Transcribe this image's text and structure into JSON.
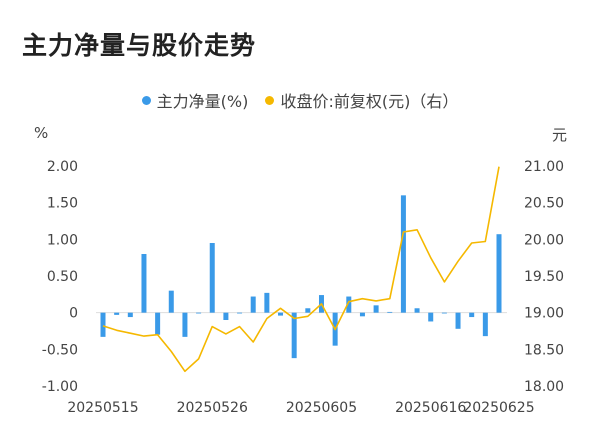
{
  "title": "主力净量与股价走势",
  "legend": {
    "bar": "主力净量(%)",
    "line": "收盘价:前复权(元)（右）"
  },
  "colors": {
    "bar": "#3a9ae8",
    "line": "#f5b800",
    "zero_line": "#dddddd",
    "text": "#444444"
  },
  "chart_data": {
    "type": "bar+line",
    "title": "主力净量与股价走势",
    "y_left": {
      "unit": "%",
      "ylim": [
        -1.0,
        2.0
      ],
      "ticks": [
        "2.00",
        "1.50",
        "1.00",
        "0.50",
        "0",
        "-0.50",
        "-1.00"
      ]
    },
    "y_right": {
      "unit": "元",
      "ylim": [
        18.0,
        21.0
      ],
      "ticks": [
        "21.00",
        "20.50",
        "20.00",
        "19.50",
        "19.00",
        "18.50",
        "18.00"
      ]
    },
    "x_tick_labels": [
      {
        "index": 0,
        "label": "20250515"
      },
      {
        "index": 8,
        "label": "20250526"
      },
      {
        "index": 16,
        "label": "20250605"
      },
      {
        "index": 24,
        "label": "20250616"
      },
      {
        "index": 32,
        "label": "20250625"
      }
    ],
    "series": [
      {
        "name": "主力净量(%)",
        "type": "bar",
        "axis": "left",
        "values": [
          -0.33,
          -0.03,
          -0.06,
          0.8,
          -0.3,
          0.3,
          -0.33,
          -0.01,
          0.95,
          -0.1,
          0.0,
          0.22,
          0.27,
          -0.04,
          -0.62,
          0.06,
          0.24,
          -0.45,
          0.22,
          -0.05,
          0.1,
          0.01,
          1.6,
          0.06,
          -0.12,
          -0.01,
          -0.22,
          -0.06,
          -0.32,
          1.07
        ]
      },
      {
        "name": "收盘价:前复权(元)（右）",
        "type": "line",
        "axis": "right",
        "values": [
          18.82,
          18.76,
          18.72,
          18.68,
          18.7,
          18.47,
          18.2,
          18.37,
          18.81,
          18.71,
          18.81,
          18.6,
          18.92,
          19.06,
          18.92,
          18.95,
          19.12,
          18.77,
          19.15,
          19.19,
          19.16,
          19.19,
          20.1,
          20.13,
          19.75,
          19.42,
          19.7,
          19.95,
          19.97,
          20.99
        ]
      }
    ]
  }
}
